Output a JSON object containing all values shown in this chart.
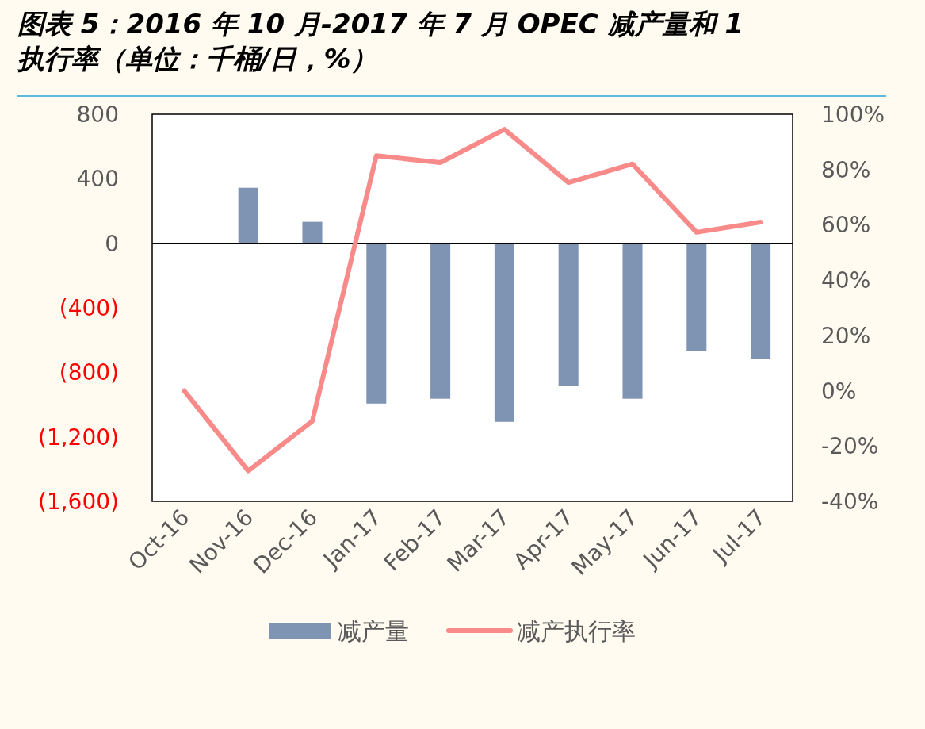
{
  "chart_data": {
    "type": "bar",
    "title": "图表 5：2016 年 10 月-2017 年 7 月 OPEC 减产量和 1\n执行率（单位：千桶/日，%）",
    "categories": [
      "Oct-16",
      "Nov-16",
      "Dec-16",
      "Jan-17",
      "Feb-17",
      "Mar-17",
      "Apr-17",
      "May-17",
      "Jun-17",
      "Jul-17"
    ],
    "series": [
      {
        "name": "减产量",
        "color": "#7f93b3",
        "values": [
          null,
          344,
          133,
          -994,
          -964,
          -1107,
          -885,
          -964,
          -669,
          -718
        ]
      },
      {
        "name": "减产执行率",
        "type": "line",
        "axis": "y2",
        "color": "#f98a8a",
        "values": [
          0,
          -29,
          -11,
          85,
          82.5,
          94.5,
          75.3,
          82,
          57.3,
          61
        ]
      }
    ],
    "ylim": [
      -1600,
      800
    ],
    "yticks": [
      {
        "value": -1600,
        "label": "(1,600)"
      },
      {
        "value": -1200,
        "label": "(1,200)"
      },
      {
        "value": -800,
        "label": "(800)"
      },
      {
        "value": -400,
        "label": "(400)"
      },
      0,
      400,
      800
    ],
    "y2lim": [
      -40,
      100
    ],
    "y2ticks": [
      {
        "value": -40,
        "label": "-40%"
      },
      {
        "value": -20,
        "label": "-20%"
      },
      {
        "value": 0,
        "label": "0%"
      },
      {
        "value": 20,
        "label": "20%"
      },
      {
        "value": 40,
        "label": "40%"
      },
      {
        "value": 60,
        "label": "60%"
      },
      {
        "value": 80,
        "label": "80%"
      },
      {
        "value": 100,
        "label": "100%"
      }
    ],
    "legend": "bottom"
  }
}
